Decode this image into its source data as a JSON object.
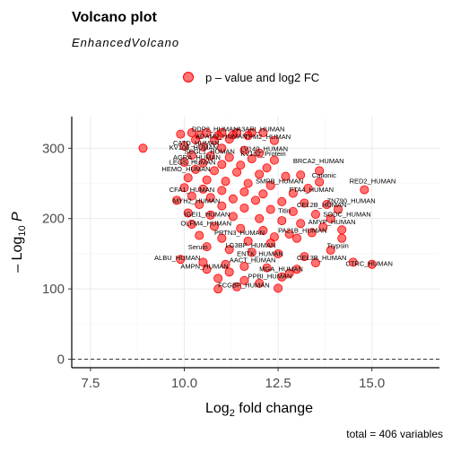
{
  "chart_data": {
    "type": "scatter",
    "title": "Volcano plot",
    "subtitle": "EnhancedVolcano",
    "xlabel": "Log2 fold change",
    "ylabel": "-Log10 P",
    "xlim": [
      7.0,
      16.8
    ],
    "ylim": [
      -12,
      345
    ],
    "xticks": [
      7.5,
      10.0,
      12.5,
      15.0
    ],
    "xtick_labels": [
      "7.5",
      "10.0",
      "12.5",
      "15.0"
    ],
    "yticks": [
      0,
      100,
      200,
      300
    ],
    "ytick_labels": [
      "0",
      "100",
      "200",
      "300"
    ],
    "threshold_y": 0,
    "grid": true,
    "legend_position": "top",
    "series": [
      {
        "name": "p – value and log2 FC",
        "color": "#ff0000",
        "points": [
          {
            "x": 10.2,
            "y": 322
          },
          {
            "x": 10.6,
            "y": 322
          },
          {
            "x": 11.0,
            "y": 322
          },
          {
            "x": 11.4,
            "y": 322
          },
          {
            "x": 11.8,
            "y": 322
          },
          {
            "x": 12.1,
            "y": 322
          },
          {
            "x": 9.9,
            "y": 320
          },
          {
            "x": 10.4,
            "y": 319
          },
          {
            "x": 10.9,
            "y": 318
          },
          {
            "x": 11.3,
            "y": 319
          },
          {
            "x": 11.7,
            "y": 318
          },
          {
            "x": 10.3,
            "y": 312
          },
          {
            "x": 10.8,
            "y": 311
          },
          {
            "x": 11.2,
            "y": 313
          },
          {
            "x": 12.4,
            "y": 311
          },
          {
            "x": 8.9,
            "y": 300
          },
          {
            "x": 10.0,
            "y": 303
          },
          {
            "x": 10.5,
            "y": 302
          },
          {
            "x": 11.0,
            "y": 300
          },
          {
            "x": 11.6,
            "y": 297
          },
          {
            "x": 12.0,
            "y": 293
          },
          {
            "x": 10.2,
            "y": 290
          },
          {
            "x": 10.7,
            "y": 289
          },
          {
            "x": 11.2,
            "y": 287
          },
          {
            "x": 11.8,
            "y": 285
          },
          {
            "x": 12.4,
            "y": 283
          },
          {
            "x": 10.0,
            "y": 280
          },
          {
            "x": 10.5,
            "y": 279
          },
          {
            "x": 11.0,
            "y": 277
          },
          {
            "x": 11.5,
            "y": 276
          },
          {
            "x": 12.2,
            "y": 272
          },
          {
            "x": 10.3,
            "y": 270
          },
          {
            "x": 10.8,
            "y": 268
          },
          {
            "x": 11.4,
            "y": 266
          },
          {
            "x": 12.0,
            "y": 263
          },
          {
            "x": 12.7,
            "y": 260
          },
          {
            "x": 13.6,
            "y": 268
          },
          {
            "x": 13.1,
            "y": 262
          },
          {
            "x": 13.6,
            "y": 252
          },
          {
            "x": 10.1,
            "y": 258
          },
          {
            "x": 10.6,
            "y": 255
          },
          {
            "x": 11.1,
            "y": 253
          },
          {
            "x": 11.7,
            "y": 250
          },
          {
            "x": 12.3,
            "y": 247
          },
          {
            "x": 10.0,
            "y": 244
          },
          {
            "x": 10.5,
            "y": 242
          },
          {
            "x": 11.0,
            "y": 240
          },
          {
            "x": 11.6,
            "y": 238
          },
          {
            "x": 12.1,
            "y": 235
          },
          {
            "x": 12.9,
            "y": 236
          },
          {
            "x": 14.8,
            "y": 241
          },
          {
            "x": 13.3,
            "y": 243
          },
          {
            "x": 10.2,
            "y": 232
          },
          {
            "x": 10.7,
            "y": 230
          },
          {
            "x": 11.3,
            "y": 228
          },
          {
            "x": 11.9,
            "y": 226
          },
          {
            "x": 12.6,
            "y": 224
          },
          {
            "x": 13.2,
            "y": 222
          },
          {
            "x": 13.8,
            "y": 220
          },
          {
            "x": 14.1,
            "y": 213
          },
          {
            "x": 9.8,
            "y": 226
          },
          {
            "x": 10.4,
            "y": 220
          },
          {
            "x": 11.0,
            "y": 218
          },
          {
            "x": 11.6,
            "y": 215
          },
          {
            "x": 12.3,
            "y": 213
          },
          {
            "x": 12.9,
            "y": 210
          },
          {
            "x": 13.5,
            "y": 206
          },
          {
            "x": 13.9,
            "y": 200
          },
          {
            "x": 10.1,
            "y": 208
          },
          {
            "x": 10.7,
            "y": 205
          },
          {
            "x": 11.3,
            "y": 203
          },
          {
            "x": 12.0,
            "y": 200
          },
          {
            "x": 12.6,
            "y": 197
          },
          {
            "x": 13.1,
            "y": 193
          },
          {
            "x": 13.7,
            "y": 188
          },
          {
            "x": 14.2,
            "y": 184
          },
          {
            "x": 13.4,
            "y": 180
          },
          {
            "x": 14.2,
            "y": 172
          },
          {
            "x": 10.2,
            "y": 192
          },
          {
            "x": 10.8,
            "y": 189
          },
          {
            "x": 11.5,
            "y": 186
          },
          {
            "x": 12.1,
            "y": 183
          },
          {
            "x": 12.8,
            "y": 178
          },
          {
            "x": 13.0,
            "y": 172
          },
          {
            "x": 12.4,
            "y": 174
          },
          {
            "x": 10.4,
            "y": 176
          },
          {
            "x": 11.0,
            "y": 172
          },
          {
            "x": 11.7,
            "y": 168
          },
          {
            "x": 12.3,
            "y": 165
          },
          {
            "x": 13.9,
            "y": 155
          },
          {
            "x": 10.6,
            "y": 160
          },
          {
            "x": 11.2,
            "y": 156
          },
          {
            "x": 11.8,
            "y": 152
          },
          {
            "x": 12.5,
            "y": 150
          },
          {
            "x": 13.2,
            "y": 146
          },
          {
            "x": 14.5,
            "y": 138
          },
          {
            "x": 15.0,
            "y": 135
          },
          {
            "x": 9.9,
            "y": 142
          },
          {
            "x": 10.5,
            "y": 138
          },
          {
            "x": 11.1,
            "y": 135
          },
          {
            "x": 11.6,
            "y": 132
          },
          {
            "x": 12.2,
            "y": 130
          },
          {
            "x": 13.5,
            "y": 137
          },
          {
            "x": 13.0,
            "y": 128
          },
          {
            "x": 12.8,
            "y": 122
          },
          {
            "x": 10.6,
            "y": 128
          },
          {
            "x": 11.2,
            "y": 124
          },
          {
            "x": 10.9,
            "y": 115
          },
          {
            "x": 11.6,
            "y": 112
          },
          {
            "x": 12.0,
            "y": 108
          },
          {
            "x": 12.5,
            "y": 101
          },
          {
            "x": 10.9,
            "y": 100
          },
          {
            "x": 11.4,
            "y": 103
          },
          {
            "x": 12.6,
            "y": 117
          }
        ]
      }
    ],
    "labels": [
      {
        "text": "DDP2_HUMAN",
        "x": 10.2,
        "y": 324
      },
      {
        "text": "A3ARI_HUMAN",
        "x": 11.4,
        "y": 324
      },
      {
        "text": "ADAM9_HUMAN",
        "x": 10.3,
        "y": 314
      },
      {
        "text": "TPM2_HUMAN",
        "x": 11.6,
        "y": 313
      },
      {
        "text": "CATD_HUMAN",
        "x": 9.7,
        "y": 304
      },
      {
        "text": "KV106_HUMAN",
        "x": 9.6,
        "y": 298
      },
      {
        "text": "LV140_HUMAN",
        "x": 11.5,
        "y": 296
      },
      {
        "text": "SCGL1_HUMAN",
        "x": 10.0,
        "y": 292
      },
      {
        "text": "KV102_Protein",
        "x": 11.5,
        "y": 289
      },
      {
        "text": "AGRA_HUMAN",
        "x": 9.7,
        "y": 284
      },
      {
        "text": "BRCA2_HUMAN",
        "x": 12.9,
        "y": 279
      },
      {
        "text": "LEGS_HUMAN",
        "x": 9.6,
        "y": 277
      },
      {
        "text": "HEMO_HUMAN",
        "x": 9.4,
        "y": 267
      },
      {
        "text": "Cationic",
        "x": 13.4,
        "y": 258
      },
      {
        "text": "RED2_HUMAN",
        "x": 14.4,
        "y": 250
      },
      {
        "text": "SMRB_HUMAN",
        "x": 11.9,
        "y": 250
      },
      {
        "text": "CFA1_HUMAN",
        "x": 9.6,
        "y": 238
      },
      {
        "text": "FTA4_HUMAN",
        "x": 12.8,
        "y": 238
      },
      {
        "text": "ZN790_HUMAN",
        "x": 13.8,
        "y": 222
      },
      {
        "text": "CEL2B_HUMAN",
        "x": 13.0,
        "y": 216
      },
      {
        "text": "MYH2_HUMAN",
        "x": 9.7,
        "y": 222
      },
      {
        "text": "Titin",
        "x": 12.5,
        "y": 208
      },
      {
        "text": "SODC_HUMAN",
        "x": 13.7,
        "y": 203
      },
      {
        "text": "IGEI1_HUMAN",
        "x": 10.0,
        "y": 203
      },
      {
        "text": "AMYP_HUMAN",
        "x": 13.3,
        "y": 192
      },
      {
        "text": "OLFM4_HUMAN",
        "x": 9.9,
        "y": 190
      },
      {
        "text": "PA21B_HUMAN",
        "x": 12.5,
        "y": 180
      },
      {
        "text": "PRTN3_HUMAN",
        "x": 10.8,
        "y": 177
      },
      {
        "text": "LG3BP_HUMAN",
        "x": 11.1,
        "y": 159
      },
      {
        "text": "Trypsin",
        "x": 13.8,
        "y": 158
      },
      {
        "text": "Serum",
        "x": 10.1,
        "y": 156
      },
      {
        "text": "ENTK_HUMAN",
        "x": 11.4,
        "y": 147
      },
      {
        "text": "ALBU_HUMAN",
        "x": 9.2,
        "y": 141
      },
      {
        "text": "CEL3B_HUMAN",
        "x": 13.0,
        "y": 141
      },
      {
        "text": "AACT_HUMAN",
        "x": 11.2,
        "y": 138
      },
      {
        "text": "CTRC_HUMAN",
        "x": 14.3,
        "y": 133
      },
      {
        "text": "AMPN_HUMAN",
        "x": 9.9,
        "y": 129
      },
      {
        "text": "MGA_HUMAN",
        "x": 12.0,
        "y": 125
      },
      {
        "text": "PPBI_HUMAN",
        "x": 11.7,
        "y": 115
      },
      {
        "text": "FCGBP_HUMAN",
        "x": 10.9,
        "y": 102
      }
    ],
    "caption": "total = 406 variables"
  }
}
